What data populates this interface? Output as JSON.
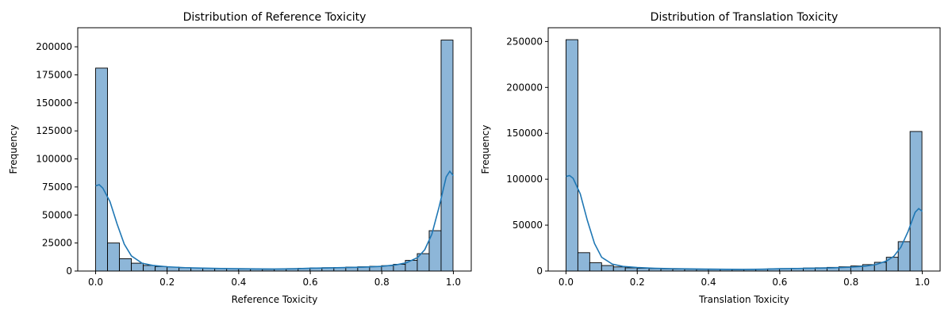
{
  "chart_data": [
    {
      "type": "bar",
      "title": "Distribution of Reference Toxicity",
      "xlabel": "Reference Toxicity",
      "ylabel": "Frequency",
      "xlim": [
        -0.05,
        1.05
      ],
      "ylim": [
        0,
        217000
      ],
      "xticks": [
        0.0,
        0.2,
        0.4,
        0.6,
        0.8,
        1.0
      ],
      "xtick_labels": [
        "0.0",
        "0.2",
        "0.4",
        "0.6",
        "0.8",
        "1.0"
      ],
      "yticks": [
        0,
        25000,
        50000,
        75000,
        100000,
        125000,
        150000,
        175000,
        200000
      ],
      "ytick_labels": [
        "0",
        "25000",
        "50000",
        "75000",
        "100000",
        "125000",
        "150000",
        "175000",
        "200000"
      ],
      "bin_start": 0.0,
      "bin_width": 0.0333,
      "values": [
        181000,
        25000,
        11000,
        7000,
        5000,
        4000,
        3500,
        3000,
        2800,
        2500,
        2300,
        2100,
        1900,
        1700,
        1600,
        1800,
        2200,
        2500,
        2800,
        3000,
        3200,
        3500,
        3800,
        4200,
        4800,
        6000,
        9500,
        15500,
        36000,
        206000
      ],
      "kde_x": [
        0.0,
        0.01,
        0.02,
        0.04,
        0.06,
        0.08,
        0.1,
        0.13,
        0.16,
        0.2,
        0.25,
        0.3,
        0.35,
        0.4,
        0.45,
        0.5,
        0.55,
        0.6,
        0.65,
        0.7,
        0.75,
        0.8,
        0.84,
        0.87,
        0.9,
        0.92,
        0.94,
        0.96,
        0.98,
        0.99,
        1.0
      ],
      "kde_y": [
        76000,
        77000,
        74000,
        62000,
        42000,
        24000,
        13500,
        7000,
        5000,
        3800,
        3000,
        2600,
        2300,
        2100,
        1900,
        1800,
        2000,
        2500,
        2800,
        3100,
        3500,
        4200,
        5500,
        7500,
        12000,
        19000,
        33000,
        57000,
        84000,
        89000,
        85000
      ],
      "color": "#1f77b4",
      "bar_color": "#8db6d8"
    },
    {
      "type": "bar",
      "title": "Distribution of Translation Toxicity",
      "xlabel": "Translation Toxicity",
      "ylabel": "Frequency",
      "xlim": [
        -0.05,
        1.05
      ],
      "ylim": [
        0,
        265000
      ],
      "xticks": [
        0.0,
        0.2,
        0.4,
        0.6,
        0.8,
        1.0
      ],
      "xtick_labels": [
        "0.0",
        "0.2",
        "0.4",
        "0.6",
        "0.8",
        "1.0"
      ],
      "yticks": [
        0,
        50000,
        100000,
        150000,
        200000,
        250000
      ],
      "ytick_labels": [
        "0",
        "50000",
        "100000",
        "150000",
        "200000",
        "250000"
      ],
      "bin_start": 0.0,
      "bin_width": 0.0333,
      "values": [
        252000,
        20000,
        9000,
        6000,
        4500,
        3500,
        3000,
        2700,
        2400,
        2200,
        2000,
        1900,
        1800,
        1700,
        1600,
        1800,
        2100,
        2400,
        2700,
        3000,
        3300,
        3600,
        4000,
        4600,
        5500,
        7000,
        9500,
        15000,
        32000,
        152000
      ],
      "kde_x": [
        0.0,
        0.01,
        0.02,
        0.04,
        0.06,
        0.08,
        0.1,
        0.13,
        0.16,
        0.2,
        0.25,
        0.3,
        0.35,
        0.4,
        0.45,
        0.5,
        0.55,
        0.6,
        0.65,
        0.7,
        0.75,
        0.8,
        0.84,
        0.87,
        0.9,
        0.92,
        0.94,
        0.96,
        0.98,
        0.99,
        1.0
      ],
      "kde_y": [
        103000,
        104000,
        101000,
        84000,
        55000,
        30000,
        15000,
        7500,
        5000,
        3800,
        3000,
        2600,
        2300,
        2100,
        1900,
        1800,
        2000,
        2500,
        2800,
        3100,
        3500,
        4200,
        5300,
        7000,
        11000,
        16000,
        26000,
        43000,
        64000,
        68000,
        65000
      ],
      "color": "#1f77b4",
      "bar_color": "#8db6d8"
    }
  ]
}
